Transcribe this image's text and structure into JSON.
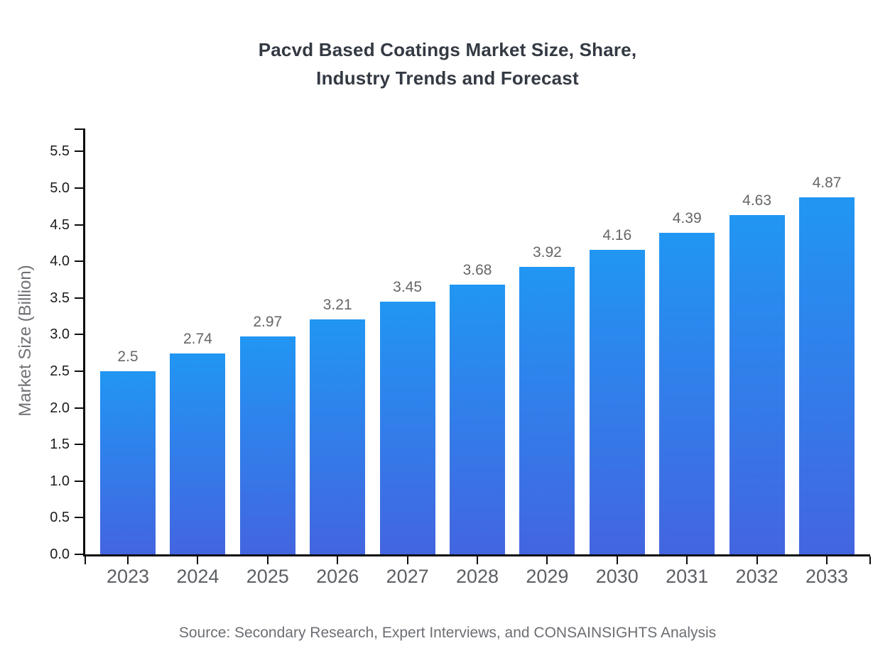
{
  "page": {
    "background_color": "#ffffff"
  },
  "title": {
    "line1": "Pacvd Based Coatings Market Size, Share,",
    "line2": "Industry Trends and Forecast"
  },
  "chart_data": {
    "type": "bar",
    "title": "Pacvd Based Coatings Market Size, Share, Industry Trends and Forecast",
    "categories": [
      "2023",
      "2024",
      "2025",
      "2026",
      "2027",
      "2028",
      "2029",
      "2030",
      "2031",
      "2032",
      "2033"
    ],
    "values": [
      2.5,
      2.74,
      2.97,
      3.21,
      3.45,
      3.68,
      3.92,
      4.16,
      4.39,
      4.63,
      4.87
    ],
    "value_labels": [
      "2.5",
      "2.74",
      "2.97",
      "3.21",
      "3.45",
      "3.68",
      "3.92",
      "4.16",
      "4.39",
      "4.63",
      "4.87"
    ],
    "xlabel": "",
    "ylabel": "Market Size (Billion)",
    "ylim": [
      0,
      5.5
    ],
    "ytick_step": 0.5,
    "ytick_labels": [
      "0.0",
      "0.5",
      "1.0",
      "1.5",
      "2.0",
      "2.5",
      "3.0",
      "3.5",
      "4.0",
      "4.5",
      "5.0",
      "5.5"
    ],
    "grid": false,
    "legend": null,
    "colors": {
      "bar_gradient_top": "#2196f3",
      "bar_gradient_bottom": "#4365e0",
      "axis": "#0d0d0d",
      "ytick_label": "#1c1c1c",
      "xtick_label": "#5c5f63",
      "value_label": "#666666",
      "title": "#343a43",
      "ylabel": "#707176",
      "source": "#6b6e73"
    }
  },
  "footer": {
    "source": "Source: Secondary Research, Expert Interviews, and CONSAINSIGHTS Analysis"
  }
}
